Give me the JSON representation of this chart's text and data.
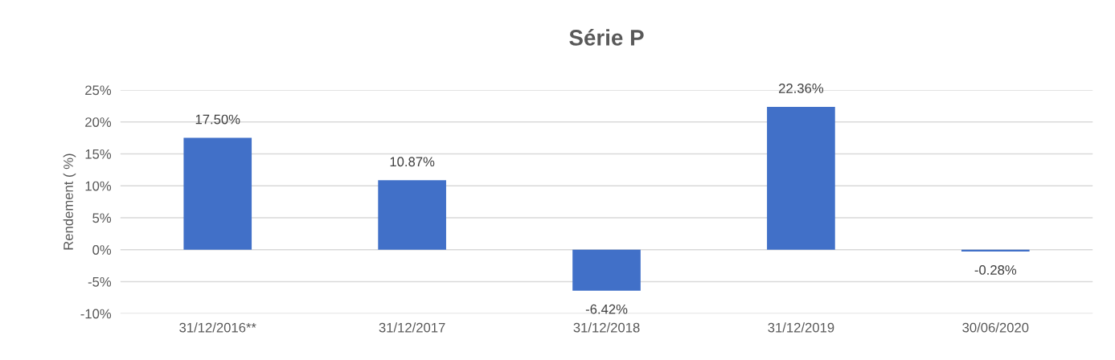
{
  "chart_data": {
    "type": "bar",
    "title": "Série P",
    "ylabel": "Rendement ( %)",
    "categories": [
      "31/12/2016**",
      "31/12/2017",
      "31/12/2018",
      "31/12/2019",
      "30/06/2020"
    ],
    "values": [
      17.5,
      10.87,
      -6.42,
      22.36,
      -0.28
    ],
    "value_labels": [
      "17.50%",
      "10.87%",
      "-6.42%",
      "22.36%",
      "-0.28%"
    ],
    "color": "#4170c8",
    "ylim": [
      -10,
      25
    ],
    "yticks": [
      {
        "value": -10,
        "label": "-10%"
      },
      {
        "value": -5,
        "label": "-5%"
      },
      {
        "value": 0,
        "label": "0%"
      },
      {
        "value": 5,
        "label": "5%"
      },
      {
        "value": 10,
        "label": "10%"
      },
      {
        "value": 15,
        "label": "15%"
      },
      {
        "value": 20,
        "label": "20%"
      },
      {
        "value": 25,
        "label": "25%"
      }
    ],
    "grid": "y",
    "legend": false
  }
}
